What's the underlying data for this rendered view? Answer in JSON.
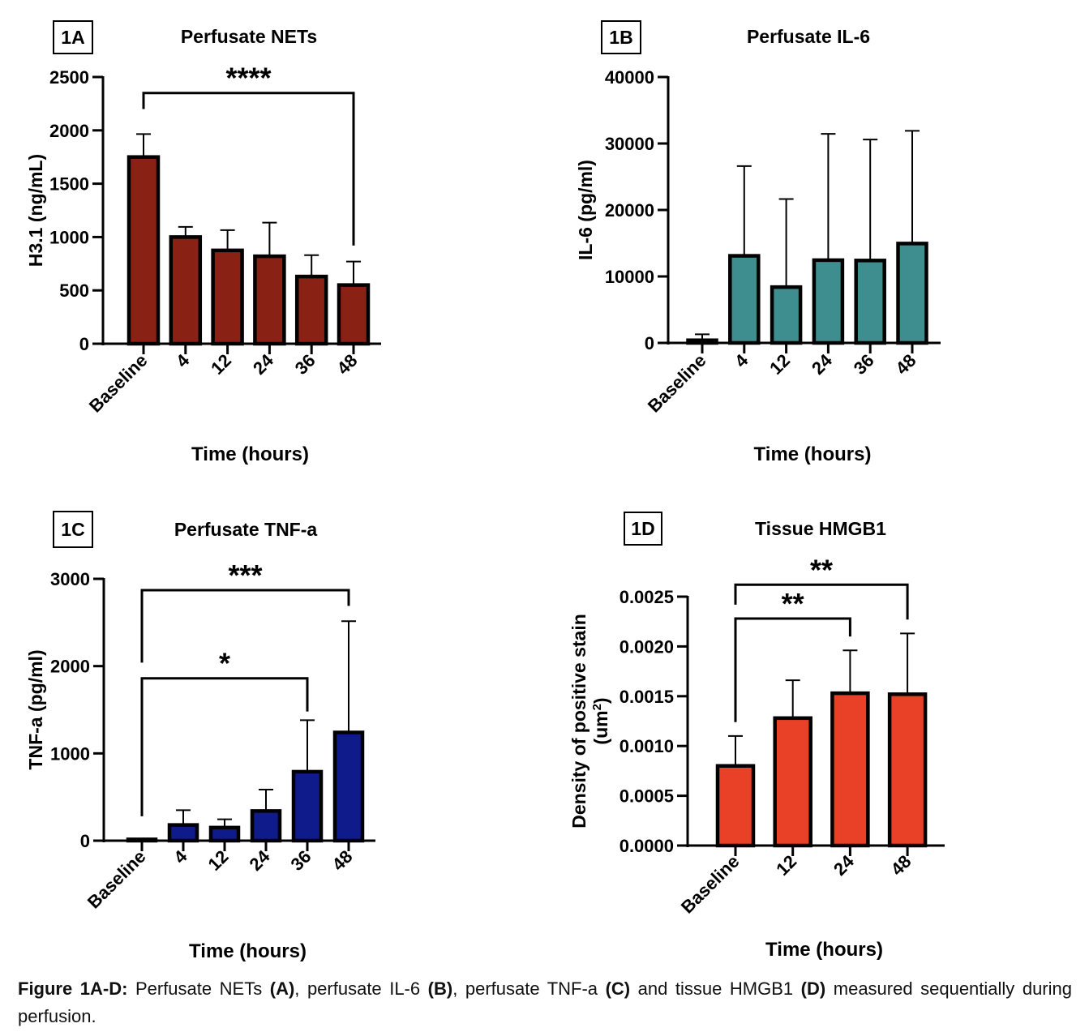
{
  "figure_caption": {
    "label": "Figure 1A-D:",
    "parts": [
      {
        "text": " Perfusate NETs ",
        "bold": false
      },
      {
        "text": "(A)",
        "bold": true
      },
      {
        "text": ", perfusate IL-6 ",
        "bold": false
      },
      {
        "text": "(B)",
        "bold": true
      },
      {
        "text": ", perfusate TNF-a ",
        "bold": false
      },
      {
        "text": "(C)",
        "bold": true
      },
      {
        "text": " and tissue HMGB1 ",
        "bold": false
      },
      {
        "text": "(D)",
        "bold": true
      },
      {
        "text": " measured sequentially during perfusion.",
        "bold": false
      }
    ]
  },
  "chart_data": [
    {
      "id": "1A",
      "panel_label": "1A",
      "type": "bar",
      "title": "Perfusate NETs",
      "xlabel": "Time (hours)",
      "ylabel": "H3.1 (ng/mL)",
      "categories": [
        "Baseline",
        "4",
        "12",
        "24",
        "36",
        "48"
      ],
      "values": [
        1750,
        1000,
        875,
        820,
        630,
        550
      ],
      "error_upper": [
        1965,
        1095,
        1065,
        1135,
        830,
        770
      ],
      "ylim": [
        0,
        2500
      ],
      "yticks": [
        0,
        500,
        1000,
        1500,
        2000,
        2500
      ],
      "ytick_labels": [
        "0",
        "500",
        "1000",
        "1500",
        "2000",
        "2500"
      ],
      "bar_color": "#8a2115",
      "grid": false,
      "significance": [
        {
          "from": "Baseline",
          "to": "48",
          "label": "****",
          "bracket_level": 2350,
          "left_drop_to": 2200,
          "right_drop_to": 920
        }
      ]
    },
    {
      "id": "1B",
      "panel_label": "1B",
      "type": "bar",
      "title": "Perfusate IL-6",
      "xlabel": "Time (hours)",
      "ylabel": "IL-6 (pg/ml)",
      "categories": [
        "Baseline",
        "4",
        "12",
        "24",
        "36",
        "48"
      ],
      "values": [
        400,
        13100,
        8400,
        12450,
        12400,
        14950
      ],
      "error_upper": [
        1300,
        26600,
        21650,
        31450,
        30600,
        31900
      ],
      "ylim": [
        0,
        40000
      ],
      "yticks": [
        0,
        10000,
        20000,
        30000,
        40000
      ],
      "ytick_labels": [
        "0",
        "10000",
        "20000",
        "30000",
        "40000"
      ],
      "bar_color": "#3f8e8f",
      "grid": false,
      "significance": []
    },
    {
      "id": "1C",
      "panel_label": "1C",
      "type": "bar",
      "title": "Perfusate TNF-a",
      "xlabel": "Time (hours)",
      "ylabel": "TNF-a (pg/ml)",
      "categories": [
        "Baseline",
        "4",
        "12",
        "24",
        "36",
        "48"
      ],
      "values": [
        15,
        180,
        150,
        340,
        790,
        1240
      ],
      "error_upper": [
        20,
        350,
        245,
        585,
        1380,
        2515
      ],
      "ylim": [
        0,
        3000
      ],
      "yticks": [
        0,
        1000,
        2000,
        3000
      ],
      "ytick_labels": [
        "0",
        "1000",
        "2000",
        "3000"
      ],
      "bar_color": "#0f1b8b",
      "grid": false,
      "significance": [
        {
          "from": "Baseline",
          "to": "48",
          "label": "***",
          "bracket_level": 2870,
          "left_drop_to": 2040,
          "right_drop_to": 2690
        },
        {
          "from": "Baseline",
          "to": "36",
          "label": "*",
          "bracket_level": 1860,
          "left_drop_to": 280,
          "right_drop_to": 1480
        }
      ]
    },
    {
      "id": "1D",
      "panel_label": "1D",
      "type": "bar",
      "title": "Tissue HMGB1",
      "xlabel": "Time (hours)",
      "ylabel": "Density of positive stain",
      "ylabel_line2": "(um",
      "ylabel_sup": "2",
      "ylabel_line2_end": ")",
      "categories": [
        "Baseline",
        "12",
        "24",
        "48"
      ],
      "values": [
        0.0008,
        0.00128,
        0.00153,
        0.00152
      ],
      "error_upper": [
        0.0011,
        0.00166,
        0.00196,
        0.00213
      ],
      "ylim": [
        0,
        0.0025
      ],
      "yticks": [
        0,
        0.0005,
        0.001,
        0.0015,
        0.002,
        0.0025
      ],
      "ytick_labels": [
        "0.0000",
        "0.0005",
        "0.0010",
        "0.0015",
        "0.0020",
        "0.0025"
      ],
      "bar_color": "#e84128",
      "grid": false,
      "significance": [
        {
          "from": "Baseline",
          "to": "48",
          "label": "**",
          "bracket_level": 0.00262,
          "left_drop_to": 0.00242,
          "right_drop_to": 0.00227
        },
        {
          "from": "Baseline",
          "to": "24",
          "label": "**",
          "bracket_level": 0.00228,
          "left_drop_to": 0.00124,
          "right_drop_to": 0.0021
        }
      ]
    }
  ]
}
